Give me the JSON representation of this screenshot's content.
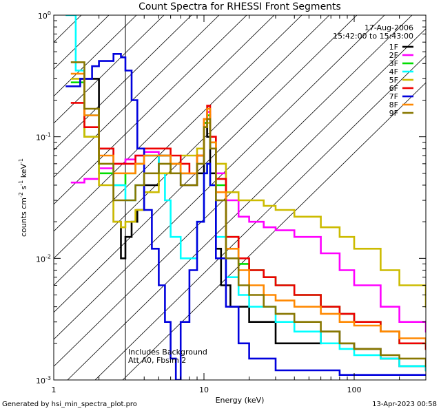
{
  "chart_data": {
    "type": "line",
    "title": "Count Spectra for RHESSI Front Segments",
    "xlabel": "Energy (keV)",
    "ylabel": {
      "base": "counts cm",
      "sup1": "-2",
      "mid": " s",
      "sup2": "-1",
      "end": " keV",
      "sup3": "-1"
    },
    "x_scale": "log",
    "y_scale": "log",
    "xlim": [
      1,
      300
    ],
    "ylim": [
      0.001,
      1
    ],
    "x_ticks": [
      {
        "value": 1,
        "label": "1"
      },
      {
        "value": 10,
        "label": "10"
      },
      {
        "value": 100,
        "label": "100"
      }
    ],
    "y_ticks": [
      {
        "value": 0.001,
        "base": "10",
        "exp": "-3"
      },
      {
        "value": 0.01,
        "base": "10",
        "exp": "-2"
      },
      {
        "value": 0.1,
        "base": "10",
        "exp": "-1"
      },
      {
        "value": 1,
        "base": "10",
        "exp": "0"
      }
    ],
    "legend_placement": "top-right",
    "legend_header": [
      "17-Aug-2006",
      "15:42:00 to 15:43:00"
    ],
    "annotations": [
      "Includes Background",
      "Att A0, Fbsim 2"
    ],
    "shaded_region_xmax": 3,
    "series": [
      {
        "name": "1F",
        "color": "#000000",
        "x": [
          1.5,
          2,
          2.5,
          2.8,
          3,
          3.3,
          3.6,
          4,
          5,
          6,
          7,
          8,
          9,
          10,
          10.5,
          11,
          12,
          13,
          15,
          20,
          30,
          40,
          60,
          80,
          100,
          150,
          200,
          300
        ],
        "y": [
          0.3,
          0.08,
          0.02,
          0.01,
          0.015,
          0.02,
          0.025,
          0.04,
          0.07,
          0.06,
          0.04,
          0.04,
          0.05,
          0.13,
          0.1,
          0.05,
          0.012,
          0.006,
          0.004,
          0.003,
          0.002,
          0.002,
          0.0025,
          0.002,
          0.0018,
          0.0015,
          0.0013,
          0.0012
        ]
      },
      {
        "name": "2F",
        "color": "#ff00ff",
        "x": [
          1.3,
          1.6,
          2,
          2.5,
          3,
          3.5,
          4,
          5,
          6,
          7,
          8,
          9,
          10,
          10.5,
          11,
          12,
          14,
          17,
          20,
          25,
          30,
          40,
          60,
          80,
          100,
          150,
          200,
          300
        ],
        "y": [
          0.042,
          0.045,
          0.055,
          0.06,
          0.065,
          0.07,
          0.075,
          0.07,
          0.06,
          0.05,
          0.05,
          0.07,
          0.13,
          0.16,
          0.1,
          0.05,
          0.03,
          0.022,
          0.02,
          0.018,
          0.017,
          0.015,
          0.011,
          0.008,
          0.006,
          0.004,
          0.003,
          0.0025
        ]
      },
      {
        "name": "3F",
        "color": "#00dd00",
        "x": [
          1.3,
          1.6,
          2,
          2.5,
          3,
          3.5,
          4,
          5,
          6,
          7,
          8,
          9,
          10,
          10.5,
          11,
          12,
          14,
          17,
          20,
          25,
          30,
          40,
          60,
          80,
          100,
          150,
          200,
          300
        ],
        "y": [
          0.28,
          0.1,
          0.05,
          0.04,
          0.05,
          0.06,
          0.07,
          0.07,
          0.06,
          0.05,
          0.05,
          0.07,
          0.13,
          0.15,
          0.09,
          0.04,
          0.015,
          0.009,
          0.008,
          0.007,
          0.006,
          0.005,
          0.004,
          0.0035,
          0.003,
          0.0025,
          0.002,
          0.0018
        ]
      },
      {
        "name": "4F",
        "color": "#00ffff",
        "x": [
          1.2,
          1.4,
          1.6,
          2,
          2.5,
          3,
          3.5,
          4,
          5,
          5.5,
          6,
          7,
          8,
          9,
          10,
          10.5,
          11,
          12,
          14,
          17,
          20,
          30,
          40,
          60,
          80,
          100,
          150,
          200,
          300
        ],
        "y": [
          1,
          0.35,
          0.15,
          0.08,
          0.04,
          0.03,
          0.04,
          0.07,
          0.05,
          0.03,
          0.015,
          0.01,
          0.01,
          0.02,
          0.05,
          0.06,
          0.04,
          0.015,
          0.007,
          0.005,
          0.004,
          0.003,
          0.0025,
          0.002,
          0.0018,
          0.0016,
          0.0015,
          0.0013,
          0.0012
        ]
      },
      {
        "name": "5F",
        "color": "#ccbb00",
        "x": [
          1.3,
          1.6,
          2,
          2.5,
          2.8,
          3,
          3.5,
          4,
          5,
          6,
          7,
          8,
          9,
          10,
          10.5,
          11,
          12,
          14,
          17,
          20,
          25,
          30,
          40,
          60,
          80,
          100,
          150,
          200,
          300
        ],
        "y": [
          0.3,
          0.1,
          0.04,
          0.02,
          0.018,
          0.02,
          0.025,
          0.035,
          0.05,
          0.06,
          0.07,
          0.07,
          0.08,
          0.12,
          0.13,
          0.1,
          0.06,
          0.035,
          0.03,
          0.03,
          0.027,
          0.025,
          0.022,
          0.018,
          0.015,
          0.012,
          0.008,
          0.006,
          0.004
        ]
      },
      {
        "name": "6F",
        "color": "#ee0000",
        "x": [
          1.3,
          1.6,
          2,
          2.5,
          3,
          3.5,
          4,
          5,
          6,
          7,
          8,
          9,
          10,
          10.5,
          11,
          12,
          14,
          17,
          20,
          25,
          30,
          40,
          60,
          80,
          100,
          150,
          200,
          300
        ],
        "y": [
          0.19,
          0.12,
          0.08,
          0.06,
          0.06,
          0.07,
          0.08,
          0.08,
          0.07,
          0.06,
          0.05,
          0.07,
          0.14,
          0.18,
          0.1,
          0.045,
          0.015,
          0.01,
          0.008,
          0.007,
          0.006,
          0.005,
          0.004,
          0.0035,
          0.003,
          0.0025,
          0.002,
          0.0018
        ]
      },
      {
        "name": "7F",
        "color": "#0000dd",
        "x": [
          1.2,
          1.5,
          1.8,
          2,
          2.5,
          2.8,
          3,
          3.3,
          3.6,
          4,
          4.5,
          5,
          5.5,
          6,
          6.5,
          7,
          8,
          9,
          10,
          10.5,
          11,
          12,
          14,
          17,
          20,
          30,
          40,
          60,
          80,
          100,
          150,
          200,
          300
        ],
        "y": [
          0.26,
          0.3,
          0.38,
          0.42,
          0.48,
          0.45,
          0.35,
          0.2,
          0.08,
          0.025,
          0.012,
          0.006,
          0.003,
          0.0015,
          0.001,
          0.003,
          0.008,
          0.02,
          0.05,
          0.06,
          0.04,
          0.01,
          0.004,
          0.002,
          0.0015,
          0.0012,
          0.0012,
          0.0012,
          0.0011,
          0.0011,
          0.0011,
          0.0011,
          0.0011
        ]
      },
      {
        "name": "8F",
        "color": "#ff8800",
        "x": [
          1.3,
          1.6,
          2,
          2.5,
          3,
          3.5,
          4,
          5,
          6,
          7,
          8,
          9,
          10,
          10.5,
          11,
          12,
          14,
          17,
          20,
          25,
          30,
          40,
          60,
          80,
          100,
          150,
          200,
          300
        ],
        "y": [
          0.33,
          0.15,
          0.07,
          0.05,
          0.05,
          0.06,
          0.07,
          0.07,
          0.06,
          0.05,
          0.05,
          0.07,
          0.14,
          0.17,
          0.09,
          0.035,
          0.012,
          0.008,
          0.006,
          0.005,
          0.0045,
          0.004,
          0.0035,
          0.003,
          0.0028,
          0.0025,
          0.0022,
          0.002
        ]
      },
      {
        "name": "9F",
        "color": "#887700",
        "x": [
          1.3,
          1.6,
          2,
          2.5,
          3,
          3.5,
          4,
          5,
          6,
          7,
          8,
          9,
          10,
          10.5,
          11,
          12,
          14,
          17,
          20,
          25,
          30,
          40,
          60,
          80,
          100,
          150,
          200,
          300
        ],
        "y": [
          0.41,
          0.17,
          0.06,
          0.03,
          0.03,
          0.04,
          0.05,
          0.06,
          0.05,
          0.04,
          0.04,
          0.06,
          0.12,
          0.14,
          0.08,
          0.03,
          0.01,
          0.006,
          0.005,
          0.004,
          0.0035,
          0.003,
          0.0025,
          0.002,
          0.0018,
          0.0016,
          0.0015,
          0.0013
        ]
      }
    ]
  },
  "footer": {
    "left": "Generated by hsi_min_spectra_plot.pro",
    "right": "13-Apr-2023 00:58"
  }
}
